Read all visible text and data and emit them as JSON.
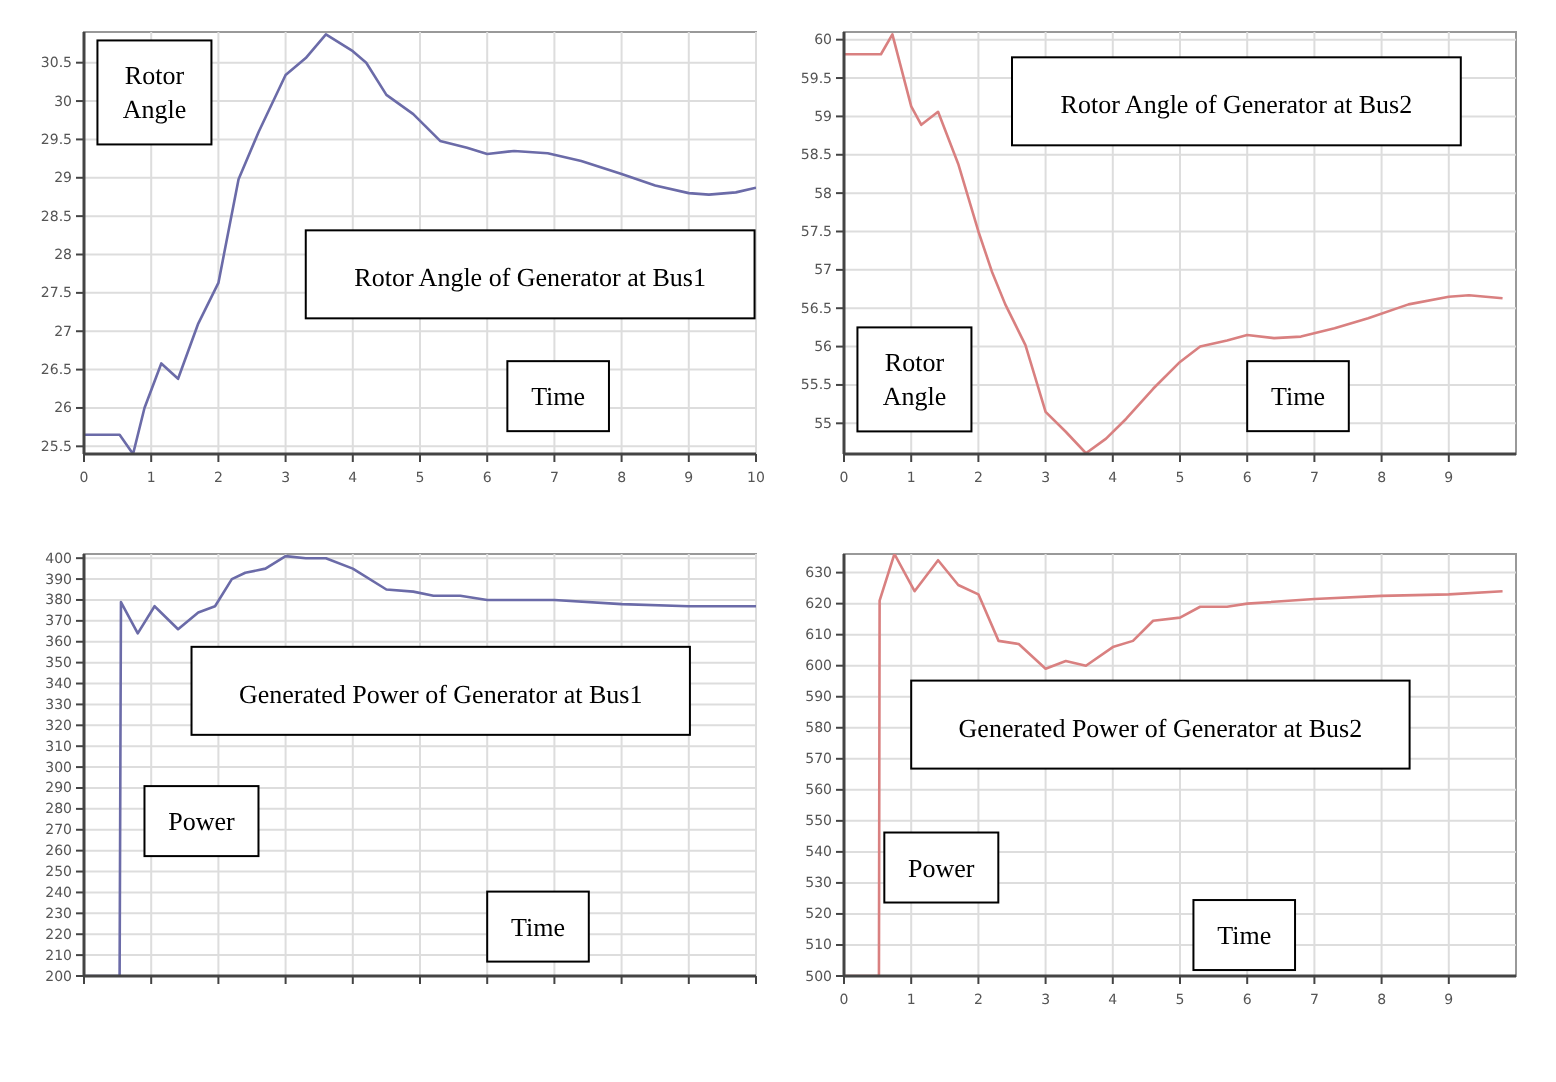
{
  "chart_data": [
    {
      "type": "line",
      "title": "Rotor Angle of Generator at Bus1",
      "ylabel": "Rotor Angle",
      "xlabel": "Time",
      "xlim": [
        0,
        10
      ],
      "xticks": [
        0,
        1,
        2,
        3,
        4,
        5,
        6,
        7,
        8,
        9,
        10
      ],
      "ylim": [
        25.4,
        30.9
      ],
      "yticks": [
        25.5,
        26,
        26.5,
        27,
        27.5,
        28,
        28.5,
        29,
        29.5,
        30,
        30.5
      ],
      "grid": true,
      "series": [
        {
          "color": "#6b6ba8",
          "x": [
            0,
            0.53,
            0.73,
            0.9,
            1.15,
            1.4,
            1.7,
            2.0,
            2.3,
            2.6,
            3.0,
            3.3,
            3.6,
            4.0,
            4.2,
            4.5,
            4.9,
            5.3,
            5.7,
            6.0,
            6.4,
            6.9,
            7.4,
            8.0,
            8.5,
            9.0,
            9.3,
            9.7,
            10
          ],
          "values": [
            25.65,
            25.65,
            25.4,
            26.0,
            26.58,
            26.38,
            27.1,
            27.63,
            28.98,
            29.6,
            30.34,
            30.56,
            30.87,
            30.65,
            30.5,
            30.08,
            29.83,
            29.48,
            29.39,
            29.31,
            29.35,
            29.32,
            29.22,
            29.05,
            28.9,
            28.8,
            28.78,
            28.81,
            28.87
          ]
        }
      ]
    },
    {
      "type": "line",
      "title": "Rotor Angle of Generator at Bus2",
      "ylabel": "Rotor Angle",
      "xlabel": "Time",
      "xlim": [
        0,
        10
      ],
      "xticks": [
        0,
        1,
        2,
        3,
        4,
        5,
        6,
        7,
        8,
        9
      ],
      "ylim": [
        54.6,
        60.1
      ],
      "yticks": [
        55,
        55.5,
        56,
        56.5,
        57,
        57.5,
        58,
        58.5,
        59,
        59.5,
        60
      ],
      "grid": true,
      "series": [
        {
          "color": "#d98080",
          "x": [
            0,
            0.55,
            0.72,
            1.0,
            1.15,
            1.4,
            1.7,
            2.0,
            2.2,
            2.4,
            2.7,
            3.0,
            3.3,
            3.6,
            3.9,
            4.2,
            4.6,
            5.0,
            5.3,
            5.7,
            6.0,
            6.4,
            6.8,
            7.3,
            7.8,
            8.4,
            9.0,
            9.3,
            9.8
          ],
          "values": [
            59.81,
            59.81,
            60.07,
            59.13,
            58.89,
            59.06,
            58.38,
            57.5,
            56.98,
            56.55,
            56.02,
            55.15,
            54.89,
            54.61,
            54.8,
            55.06,
            55.45,
            55.8,
            56.0,
            56.08,
            56.15,
            56.11,
            56.13,
            56.24,
            56.37,
            56.55,
            56.65,
            56.67,
            56.63
          ]
        }
      ]
    },
    {
      "type": "line",
      "title": "Generated Power of Generator at Bus1",
      "ylabel": "Power",
      "xlabel": "Time",
      "xlim": [
        0,
        10
      ],
      "xticks": [
        {
          "value": 0,
          "label": null
        },
        {
          "value": 1,
          "label": null
        },
        {
          "value": 2,
          "label": null
        },
        {
          "value": 3,
          "label": null
        },
        {
          "value": 4,
          "label": null
        },
        {
          "value": 5,
          "label": null
        },
        {
          "value": 6,
          "label": null
        },
        {
          "value": 7,
          "label": null
        },
        {
          "value": 8,
          "label": null
        },
        {
          "value": 9,
          "label": null
        },
        {
          "value": 10,
          "label": null
        }
      ],
      "ylim": [
        200,
        402
      ],
      "yticks": [
        200,
        210,
        220,
        230,
        240,
        250,
        260,
        270,
        280,
        290,
        300,
        310,
        320,
        330,
        340,
        350,
        360,
        370,
        380,
        390,
        400
      ],
      "grid": true,
      "tick_labels": "y",
      "series": [
        {
          "color": "#6b6ba8",
          "x": [
            0,
            0.53,
            0.55,
            0.8,
            1.05,
            1.4,
            1.7,
            1.95,
            2.2,
            2.4,
            2.7,
            3.0,
            3.3,
            3.6,
            4.0,
            4.5,
            4.9,
            5.2,
            5.6,
            6.0,
            7.0,
            8.0,
            9.0,
            10
          ],
          "values": [
            200,
            200,
            379,
            364,
            377,
            366,
            374,
            377,
            390,
            393,
            395,
            401,
            400,
            400,
            395,
            385,
            384,
            382,
            382,
            380,
            380,
            378,
            377,
            377
          ]
        }
      ]
    },
    {
      "type": "line",
      "title": "Generated Power of Generator at Bus2",
      "ylabel": "Power",
      "xlabel": "Time",
      "xlim": [
        0,
        10
      ],
      "xticks": [
        0,
        1,
        2,
        3,
        4,
        5,
        6,
        7,
        8,
        9
      ],
      "ylim": [
        500,
        636
      ],
      "yticks": [
        500,
        510,
        520,
        530,
        540,
        550,
        560,
        570,
        580,
        590,
        600,
        610,
        620,
        630
      ],
      "grid": true,
      "series": [
        {
          "color": "#d98080",
          "x": [
            0,
            0.52,
            0.53,
            0.75,
            1.05,
            1.4,
            1.7,
            2.0,
            2.3,
            2.6,
            3.0,
            3.3,
            3.6,
            4.0,
            4.3,
            4.6,
            5.0,
            5.3,
            5.7,
            6.0,
            7.0,
            8.0,
            9.0,
            9.8
          ],
          "values": [
            500,
            500,
            621,
            636,
            624,
            634,
            626,
            623,
            608,
            607,
            599,
            601.5,
            600,
            606,
            608,
            614.5,
            615.5,
            619,
            619,
            620,
            621.5,
            622.5,
            623,
            624
          ]
        }
      ]
    }
  ]
}
